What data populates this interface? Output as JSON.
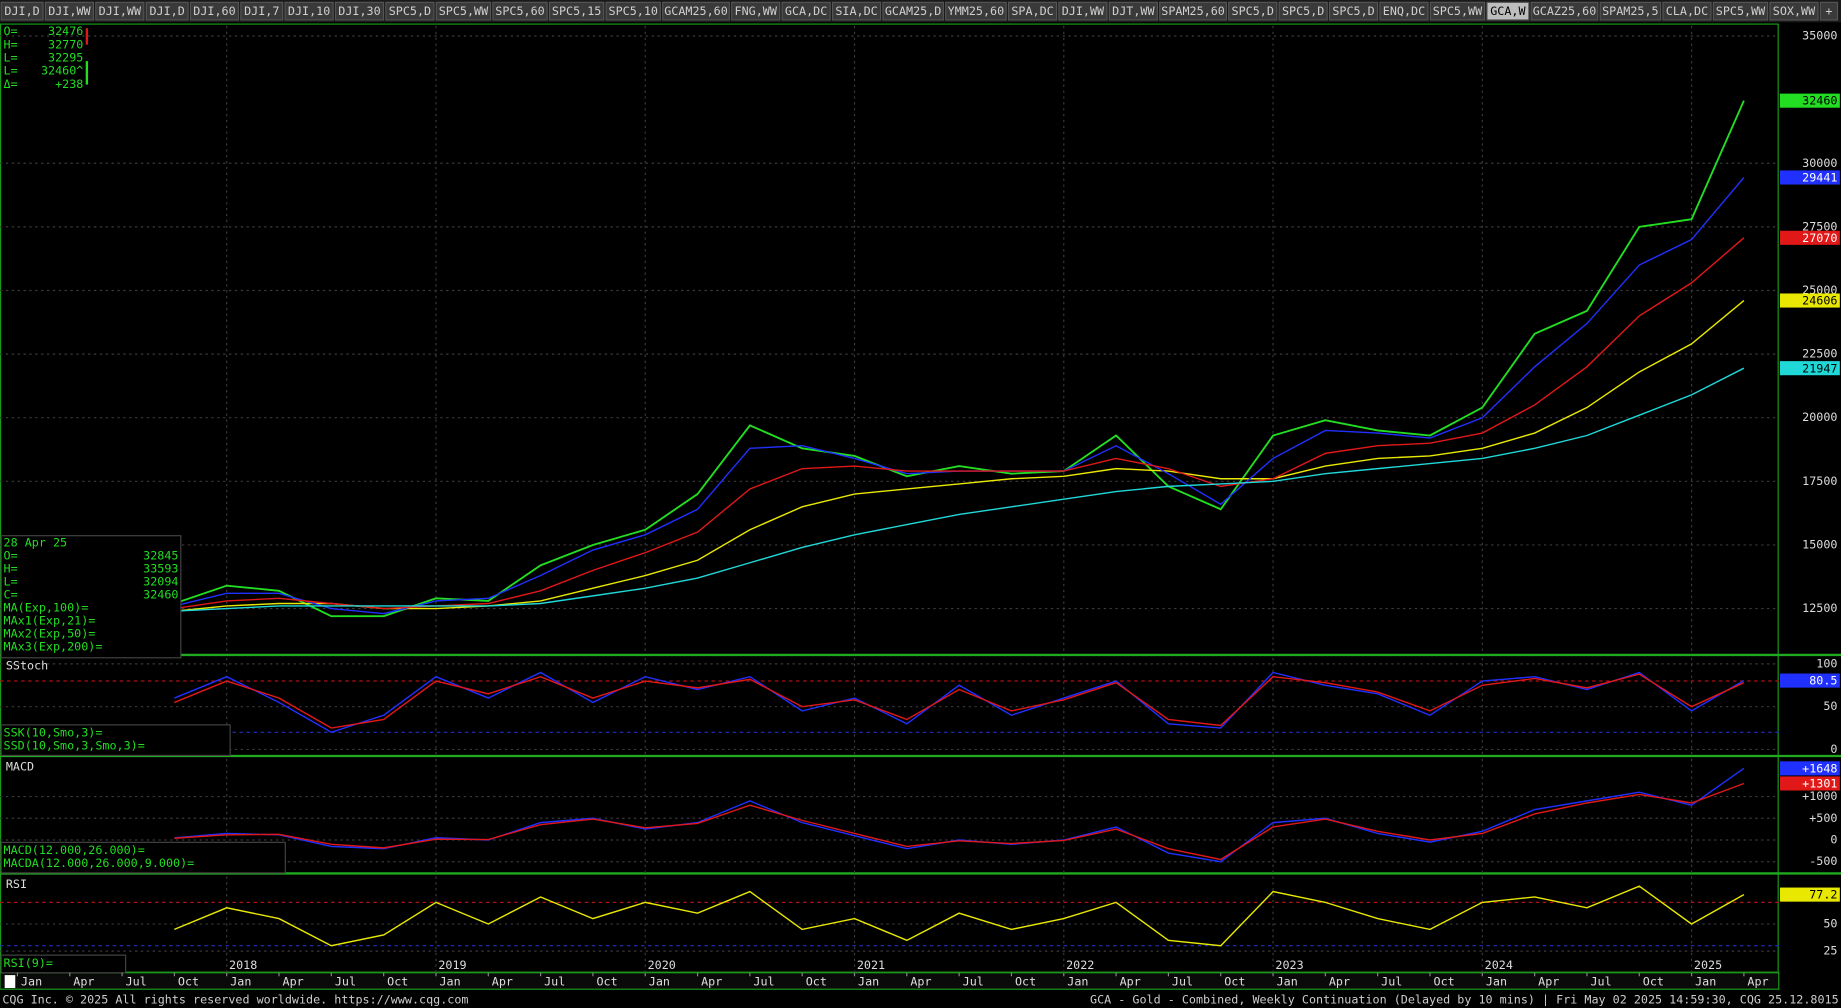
{
  "tabs": [
    "DJI,D",
    "DJI,WW",
    "DJI,WW",
    "DJI,D",
    "DJI,60",
    "DJI,7",
    "DJI,10",
    "DJI,30",
    "SPC5,D",
    "SPC5,WW",
    "SPC5,60",
    "SPC5,15",
    "SPC5,10",
    "GCAM25,60",
    "FNG,WW",
    "GCA,DC",
    "SIA,DC",
    "GCAM25,D",
    "YMM25,60",
    "SPA,DC",
    "DJI,WW",
    "DJT,WW",
    "SPAM25,60",
    "SPC5,D",
    "SPC5,D",
    "SPC5,D",
    "ENQ,DC",
    "SPC5,WW",
    "GCA,W",
    "GCAZ25,60",
    "SPAM25,5",
    "CLA,DC",
    "SPC5,WW",
    "SOX,WW",
    "+"
  ],
  "active_tab": "GCA,W",
  "quote": [
    {
      "label": "O=",
      "value": 32476
    },
    {
      "label": "H=",
      "value": 32770
    },
    {
      "label": "L=",
      "value": 32295
    },
    {
      "label": "L=",
      "value": "32460^"
    },
    {
      "label": "Δ=",
      "value": "+238"
    }
  ],
  "footer_left": "CQG Inc. © 2025 All rights reserved worldwide. https://www.cqg.com",
  "footer_right": "GCA - Gold - Combined, Weekly Continuation (Delayed by 10 mins) | Fri May 02 2025 14:59:30, CQG 25.12.8015",
  "chart_data": [
    {
      "type": "line",
      "readout": {
        "date": "28 Apr 25",
        "rows": [
          {
            "label": "O=",
            "value": 32845
          },
          {
            "label": "H=",
            "value": 33593
          },
          {
            "label": "L=",
            "value": 32094
          },
          {
            "label": "C=",
            "value": 32460
          }
        ]
      },
      "x": [
        "2017-10",
        "2018-01",
        "2018-04",
        "2018-07",
        "2018-10",
        "2019-01",
        "2019-04",
        "2019-07",
        "2019-10",
        "2020-01",
        "2020-04",
        "2020-07",
        "2020-10",
        "2021-01",
        "2021-04",
        "2021-07",
        "2021-10",
        "2022-01",
        "2022-04",
        "2022-07",
        "2022-10",
        "2023-01",
        "2023-04",
        "2023-07",
        "2023-10",
        "2024-01",
        "2024-04",
        "2024-07",
        "2024-10",
        "2025-01",
        "2025-04"
      ],
      "xlim": [
        "2016-12",
        "2025-06"
      ],
      "ylim": [
        10700,
        35400
      ],
      "yticks": [
        12500,
        15000,
        17500,
        20000,
        22500,
        25000,
        27500,
        30000,
        35000
      ],
      "grid": true,
      "series": [
        {
          "color": "#22dd22",
          "values": [
            12700,
            13400,
            13200,
            12200,
            12200,
            12900,
            12800,
            14200,
            15000,
            15600,
            17000,
            19700,
            18800,
            18500,
            17700,
            18100,
            17800,
            17900,
            19300,
            17300,
            16400,
            19300,
            19900,
            19500,
            19300,
            20400,
            23300,
            24200,
            27500,
            27800,
            32460
          ]
        },
        {
          "name": "MA(Exp,100)=",
          "color": "#e8e800",
          "values": [
            12400,
            12600,
            12700,
            12700,
            12500,
            12500,
            12600,
            12800,
            13300,
            13800,
            14400,
            15600,
            16500,
            17000,
            17200,
            17400,
            17600,
            17700,
            18000,
            17900,
            17600,
            17600,
            18100,
            18400,
            18500,
            18800,
            19400,
            20400,
            21800,
            22900,
            24606
          ]
        },
        {
          "name": "MAx1(Exp,21)=",
          "color": "#2030ff",
          "values": [
            12600,
            13100,
            13100,
            12500,
            12300,
            12800,
            12900,
            13800,
            14800,
            15400,
            16400,
            18800,
            18900,
            18400,
            17800,
            17900,
            17900,
            17900,
            18900,
            17800,
            16600,
            18400,
            19500,
            19400,
            19200,
            20000,
            22000,
            23700,
            26000,
            27000,
            29441
          ]
        },
        {
          "name": "MAx2(Exp,50)=",
          "color": "#e01818",
          "values": [
            12500,
            12800,
            12900,
            12700,
            12500,
            12600,
            12700,
            13200,
            14000,
            14700,
            15500,
            17200,
            18000,
            18100,
            17900,
            17900,
            17900,
            17900,
            18400,
            18000,
            17300,
            17600,
            18600,
            18900,
            19000,
            19400,
            20500,
            22000,
            24000,
            25300,
            27070
          ]
        },
        {
          "name": "MAx3(Exp,200)=",
          "color": "#20d8d8",
          "values": [
            12400,
            12500,
            12600,
            12600,
            12600,
            12600,
            12600,
            12700,
            13000,
            13300,
            13700,
            14300,
            14900,
            15400,
            15800,
            16200,
            16500,
            16800,
            17100,
            17300,
            17400,
            17500,
            17800,
            18000,
            18200,
            18400,
            18800,
            19300,
            20100,
            20900,
            21947
          ]
        }
      ]
    },
    {
      "type": "line",
      "title": "SStoch",
      "ylim": [
        -7,
        107
      ],
      "yticks": [
        0,
        50,
        100
      ],
      "grid": true,
      "levels": [
        80,
        20
      ],
      "series": [
        {
          "name": "SSK(10,Smo,3)=",
          "color": "#2030ff",
          "values": [
            60,
            85,
            55,
            20,
            40,
            85,
            60,
            90,
            55,
            85,
            70,
            85,
            45,
            60,
            30,
            75,
            40,
            60,
            80,
            30,
            25,
            90,
            75,
            65,
            40,
            80,
            85,
            70,
            90,
            45,
            80.5
          ]
        },
        {
          "name": "SSD(10,Smo,3,Smo,3)=",
          "color": "#e01818",
          "values": [
            55,
            80,
            60,
            25,
            35,
            80,
            65,
            85,
            60,
            80,
            72,
            82,
            50,
            58,
            35,
            70,
            45,
            58,
            78,
            35,
            28,
            85,
            78,
            67,
            45,
            75,
            83,
            72,
            88,
            50,
            78
          ]
        }
      ]
    },
    {
      "type": "line",
      "title": "MACD",
      "ylim": [
        -757,
        1865
      ],
      "yticks": [
        {
          "value": 1000,
          "label": "+1000"
        },
        {
          "value": 500,
          "label": "+500"
        },
        0,
        -500
      ],
      "grid": true,
      "series": [
        {
          "name": "MACD(12.000,26.000)=",
          "color": "#2030ff",
          "values": [
            50,
            150,
            120,
            -150,
            -200,
            50,
            0,
            400,
            500,
            250,
            400,
            900,
            400,
            100,
            -200,
            0,
            -100,
            0,
            300,
            -300,
            -500,
            400,
            500,
            150,
            -50,
            200,
            700,
            900,
            1100,
            800,
            1648
          ],
          "value_labels": [
            null,
            null,
            null,
            null,
            null,
            null,
            null,
            null,
            null,
            null,
            null,
            null,
            null,
            null,
            null,
            null,
            null,
            null,
            null,
            null,
            null,
            null,
            null,
            null,
            null,
            null,
            null,
            null,
            null,
            null,
            "+1648"
          ]
        },
        {
          "name": "MACDA(12.000,26.000,9.000)=",
          "color": "#e01818",
          "values": [
            40,
            120,
            130,
            -100,
            -180,
            20,
            10,
            350,
            480,
            280,
            380,
            800,
            450,
            150,
            -150,
            -20,
            -80,
            -10,
            250,
            -200,
            -450,
            300,
            480,
            200,
            0,
            150,
            600,
            850,
            1050,
            850,
            1301
          ],
          "value_labels": [
            null,
            null,
            null,
            null,
            null,
            null,
            null,
            null,
            null,
            null,
            null,
            null,
            null,
            null,
            null,
            null,
            null,
            null,
            null,
            null,
            null,
            null,
            null,
            null,
            null,
            null,
            null,
            null,
            null,
            null,
            "+1301"
          ]
        }
      ]
    },
    {
      "type": "line",
      "title": "RSI",
      "ylim": [
        5,
        94
      ],
      "yticks": [
        25,
        50
      ],
      "grid": true,
      "levels": [
        70,
        30
      ],
      "xticks": [
        {
          "value": "2017-01",
          "label": "Jan"
        },
        {
          "value": "2017-04",
          "label": "Apr"
        },
        {
          "value": "2017-07",
          "label": "Jul"
        },
        {
          "value": "2017-10",
          "label": "Oct"
        },
        {
          "value": "2018-01",
          "label": "Jan"
        },
        {
          "value": "2018-04",
          "label": "Apr"
        },
        {
          "value": "2018-07",
          "label": "Jul"
        },
        {
          "value": "2018-10",
          "label": "Oct"
        },
        {
          "value": "2019-01",
          "label": "Jan"
        },
        {
          "value": "2019-04",
          "label": "Apr"
        },
        {
          "value": "2019-07",
          "label": "Jul"
        },
        {
          "value": "2019-10",
          "label": "Oct"
        },
        {
          "value": "2020-01",
          "label": "Jan"
        },
        {
          "value": "2020-04",
          "label": "Apr"
        },
        {
          "value": "2020-07",
          "label": "Jul"
        },
        {
          "value": "2020-10",
          "label": "Oct"
        },
        {
          "value": "2021-01",
          "label": "Jan"
        },
        {
          "value": "2021-04",
          "label": "Apr"
        },
        {
          "value": "2021-07",
          "label": "Jul"
        },
        {
          "value": "2021-10",
          "label": "Oct"
        },
        {
          "value": "2022-01",
          "label": "Jan"
        },
        {
          "value": "2022-04",
          "label": "Apr"
        },
        {
          "value": "2022-07",
          "label": "Jul"
        },
        {
          "value": "2022-10",
          "label": "Oct"
        },
        {
          "value": "2023-01",
          "label": "Jan"
        },
        {
          "value": "2023-04",
          "label": "Apr"
        },
        {
          "value": "2023-07",
          "label": "Jul"
        },
        {
          "value": "2023-10",
          "label": "Oct"
        },
        {
          "value": "2024-01",
          "label": "Jan"
        },
        {
          "value": "2024-04",
          "label": "Apr"
        },
        {
          "value": "2024-07",
          "label": "Jul"
        },
        {
          "value": "2024-10",
          "label": "Oct"
        },
        {
          "value": "2025-01",
          "label": "Jan"
        },
        {
          "value": "2025-04",
          "label": "Apr"
        }
      ],
      "year_ticks": [
        2018,
        2019,
        2020,
        2021,
        2022,
        2023,
        2024,
        2025
      ],
      "series": [
        {
          "name": "RSI(9)=",
          "color": "#e8e800",
          "values": [
            45,
            65,
            55,
            30,
            40,
            70,
            50,
            75,
            55,
            70,
            60,
            80,
            45,
            55,
            35,
            60,
            45,
            55,
            70,
            35,
            30,
            80,
            70,
            55,
            45,
            70,
            75,
            65,
            85,
            50,
            77.2
          ]
        }
      ]
    }
  ]
}
